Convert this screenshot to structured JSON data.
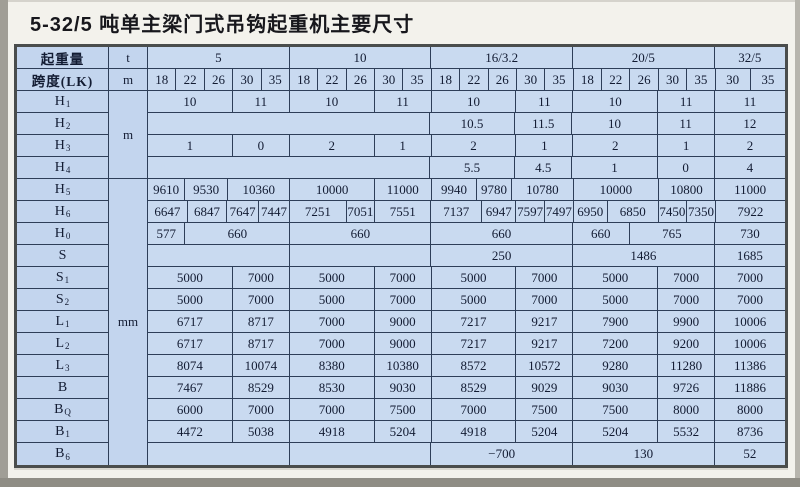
{
  "title": "5-32/5 吨单主梁门式吊钩起重机主要尺寸",
  "colors": {
    "table_bg": "#c9daf0",
    "label_bg": "#c3d5ee",
    "grid_line": "#2e3e58",
    "outer_border": "#4a4d4c",
    "text": "#121b32",
    "page_bg": "#f3f2ec",
    "scan_edge": "#8f8d85"
  },
  "table": {
    "header": {
      "row1_label": "起重量",
      "row1_unit": "t",
      "row2_label": "跨度(LK)",
      "row2_unit": "m",
      "groups": [
        [
          "5",
          5
        ],
        [
          "10",
          5
        ],
        [
          "16/3.2",
          5
        ],
        [
          "20/5",
          5
        ],
        [
          "32/5",
          2.5
        ]
      ],
      "spans": [
        "18",
        "22",
        "26",
        "30",
        "35",
        "18",
        "22",
        "26",
        "30",
        "35",
        "18",
        "22",
        "26",
        "30",
        "35",
        "18",
        "22",
        "26",
        "30",
        "35",
        "30",
        "35"
      ]
    },
    "unit_column": [
      {
        "label": "m",
        "rows": 4
      },
      {
        "label": "mm",
        "rows": 13
      }
    ],
    "rows": [
      {
        "label": "H",
        "sub": "1",
        "cells": [
          [
            "10",
            3
          ],
          [
            "11",
            2
          ],
          [
            "10",
            3
          ],
          [
            "11",
            2
          ],
          [
            "10",
            3
          ],
          [
            "11",
            2
          ],
          [
            "10",
            3
          ],
          [
            "11",
            2
          ],
          [
            "11",
            2.5
          ]
        ]
      },
      {
        "label": "H",
        "sub": "2",
        "cells": [
          [
            "",
            10
          ],
          [
            "10.5",
            3
          ],
          [
            "11.5",
            2
          ],
          [
            "10",
            3
          ],
          [
            "11",
            2
          ],
          [
            "12",
            2.5
          ]
        ]
      },
      {
        "label": "H",
        "sub": "3",
        "cells": [
          [
            "1",
            3
          ],
          [
            "0",
            2
          ],
          [
            "2",
            3
          ],
          [
            "1",
            2
          ],
          [
            "2",
            3
          ],
          [
            "1",
            2
          ],
          [
            "2",
            3
          ],
          [
            "1",
            2
          ],
          [
            "2",
            2.5
          ]
        ]
      },
      {
        "label": "H",
        "sub": "4",
        "cells": [
          [
            "",
            10
          ],
          [
            "5.5",
            3
          ],
          [
            "4.5",
            2
          ],
          [
            "1",
            3
          ],
          [
            "0",
            2
          ],
          [
            "4",
            2.5
          ]
        ]
      },
      {
        "label": "H",
        "sub": "5",
        "cells": [
          [
            "9610",
            1.3
          ],
          [
            "9530",
            1.5
          ],
          [
            "10360",
            2.2
          ],
          [
            "10000",
            3
          ],
          [
            "11000",
            2
          ],
          [
            "9940",
            1.6
          ],
          [
            "9780",
            1.2
          ],
          [
            "10780",
            2.2
          ],
          [
            "10000",
            3
          ],
          [
            "10800",
            2
          ],
          [
            "11000",
            2.5
          ]
        ]
      },
      {
        "label": "H",
        "sub": "6",
        "cells": [
          [
            "6647",
            1.4
          ],
          [
            "6847",
            1.4
          ],
          [
            "7647",
            1.1
          ],
          [
            "7447",
            1.1
          ],
          [
            "7251",
            2
          ],
          [
            "7051",
            1
          ],
          [
            "7551",
            2
          ],
          [
            "7137",
            1.8
          ],
          [
            "6947",
            1.2
          ],
          [
            "7597",
            1
          ],
          [
            "7497",
            1
          ],
          [
            "6950",
            1.2
          ],
          [
            "6850",
            1.8
          ],
          [
            "7450",
            1
          ],
          [
            "7350",
            1
          ],
          [
            "7922",
            2.5
          ]
        ]
      },
      {
        "label": "H",
        "sub": "0",
        "cells": [
          [
            "577",
            1.3
          ],
          [
            "660",
            3.7
          ],
          [
            "660",
            5
          ],
          [
            "660",
            5
          ],
          [
            "660",
            2
          ],
          [
            "765",
            3
          ],
          [
            "730",
            2.5
          ]
        ]
      },
      {
        "label": "S",
        "sub": "",
        "cells": [
          [
            "",
            5
          ],
          [
            "",
            5
          ],
          [
            "250",
            5
          ],
          [
            "1486",
            5
          ],
          [
            "1685",
            2.5
          ]
        ]
      },
      {
        "label": "S",
        "sub": "1",
        "cells": [
          [
            "5000",
            3
          ],
          [
            "7000",
            2
          ],
          [
            "5000",
            3
          ],
          [
            "7000",
            2
          ],
          [
            "5000",
            3
          ],
          [
            "7000",
            2
          ],
          [
            "5000",
            3
          ],
          [
            "7000",
            2
          ],
          [
            "7000",
            2.5
          ]
        ]
      },
      {
        "label": "S",
        "sub": "2",
        "cells": [
          [
            "5000",
            3
          ],
          [
            "7000",
            2
          ],
          [
            "5000",
            3
          ],
          [
            "7000",
            2
          ],
          [
            "5000",
            3
          ],
          [
            "7000",
            2
          ],
          [
            "5000",
            3
          ],
          [
            "7000",
            2
          ],
          [
            "7000",
            2.5
          ]
        ]
      },
      {
        "label": "L",
        "sub": "1",
        "cells": [
          [
            "6717",
            3
          ],
          [
            "8717",
            2
          ],
          [
            "7000",
            3
          ],
          [
            "9000",
            2
          ],
          [
            "7217",
            3
          ],
          [
            "9217",
            2
          ],
          [
            "7900",
            3
          ],
          [
            "9900",
            2
          ],
          [
            "10006",
            2.5
          ]
        ]
      },
      {
        "label": "L",
        "sub": "2",
        "cells": [
          [
            "6717",
            3
          ],
          [
            "8717",
            2
          ],
          [
            "7000",
            3
          ],
          [
            "9000",
            2
          ],
          [
            "7217",
            3
          ],
          [
            "9217",
            2
          ],
          [
            "7200",
            3
          ],
          [
            "9200",
            2
          ],
          [
            "10006",
            2.5
          ]
        ]
      },
      {
        "label": "L",
        "sub": "3",
        "cells": [
          [
            "8074",
            3
          ],
          [
            "10074",
            2
          ],
          [
            "8380",
            3
          ],
          [
            "10380",
            2
          ],
          [
            "8572",
            3
          ],
          [
            "10572",
            2
          ],
          [
            "9280",
            3
          ],
          [
            "11280",
            2
          ],
          [
            "11386",
            2.5
          ]
        ]
      },
      {
        "label": "B",
        "sub": "",
        "cells": [
          [
            "7467",
            3
          ],
          [
            "8529",
            2
          ],
          [
            "8530",
            3
          ],
          [
            "9030",
            2
          ],
          [
            "8529",
            3
          ],
          [
            "9029",
            2
          ],
          [
            "9030",
            3
          ],
          [
            "9726",
            2
          ],
          [
            "11886",
            2.5
          ]
        ]
      },
      {
        "label": "B",
        "sub": "Q",
        "cells": [
          [
            "6000",
            3
          ],
          [
            "7000",
            2
          ],
          [
            "7000",
            3
          ],
          [
            "7500",
            2
          ],
          [
            "7000",
            3
          ],
          [
            "7500",
            2
          ],
          [
            "7500",
            3
          ],
          [
            "8000",
            2
          ],
          [
            "8000",
            2.5
          ]
        ]
      },
      {
        "label": "B",
        "sub": "1",
        "cells": [
          [
            "4472",
            3
          ],
          [
            "5038",
            2
          ],
          [
            "4918",
            3
          ],
          [
            "5204",
            2
          ],
          [
            "4918",
            3
          ],
          [
            "5204",
            2
          ],
          [
            "5204",
            3
          ],
          [
            "5532",
            2
          ],
          [
            "8736",
            2.5
          ]
        ]
      },
      {
        "label": "B",
        "sub": "6",
        "cells": [
          [
            "",
            5
          ],
          [
            "",
            5
          ],
          [
            "−700",
            5
          ],
          [
            "130",
            5
          ],
          [
            "52",
            2.5
          ]
        ]
      }
    ]
  }
}
